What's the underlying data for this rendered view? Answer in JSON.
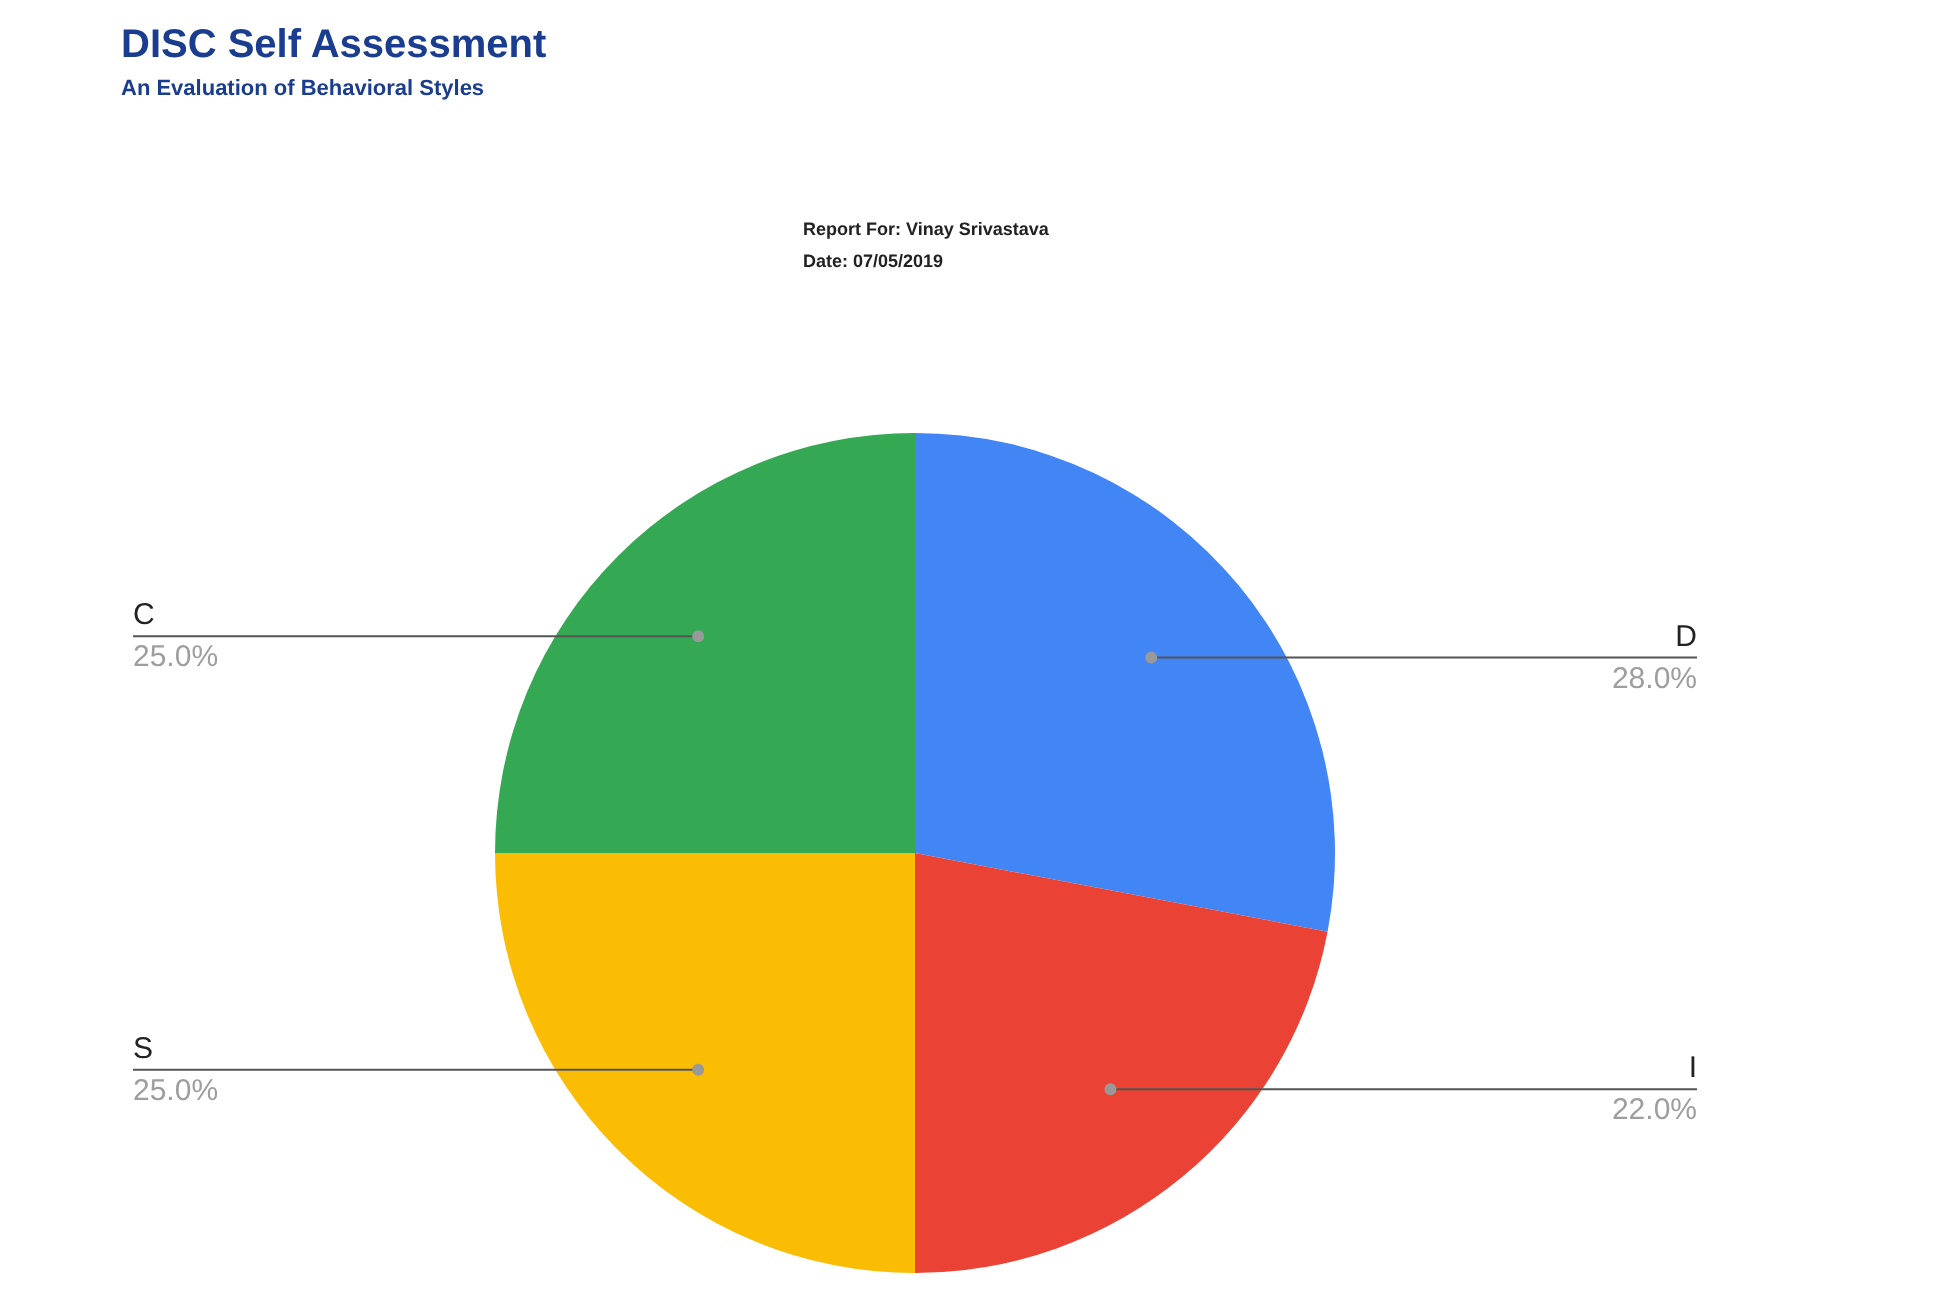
{
  "chart_data": {
    "type": "pie",
    "title": "DISC Self Assessment",
    "subtitle": "An Evaluation of Behavioral Styles",
    "annotations": [
      "Report For: Vinay Srivastava",
      "Date: 07/05/2019"
    ],
    "categories": [
      "D",
      "I",
      "S",
      "C"
    ],
    "values": [
      28,
      22,
      25,
      25
    ],
    "value_labels": [
      "28.0%",
      "22.0%",
      "25.0%",
      "25.0%"
    ],
    "colors": [
      "#4285f4",
      "#ea4335",
      "#fbbc04",
      "#34a853"
    ],
    "legend": false
  }
}
